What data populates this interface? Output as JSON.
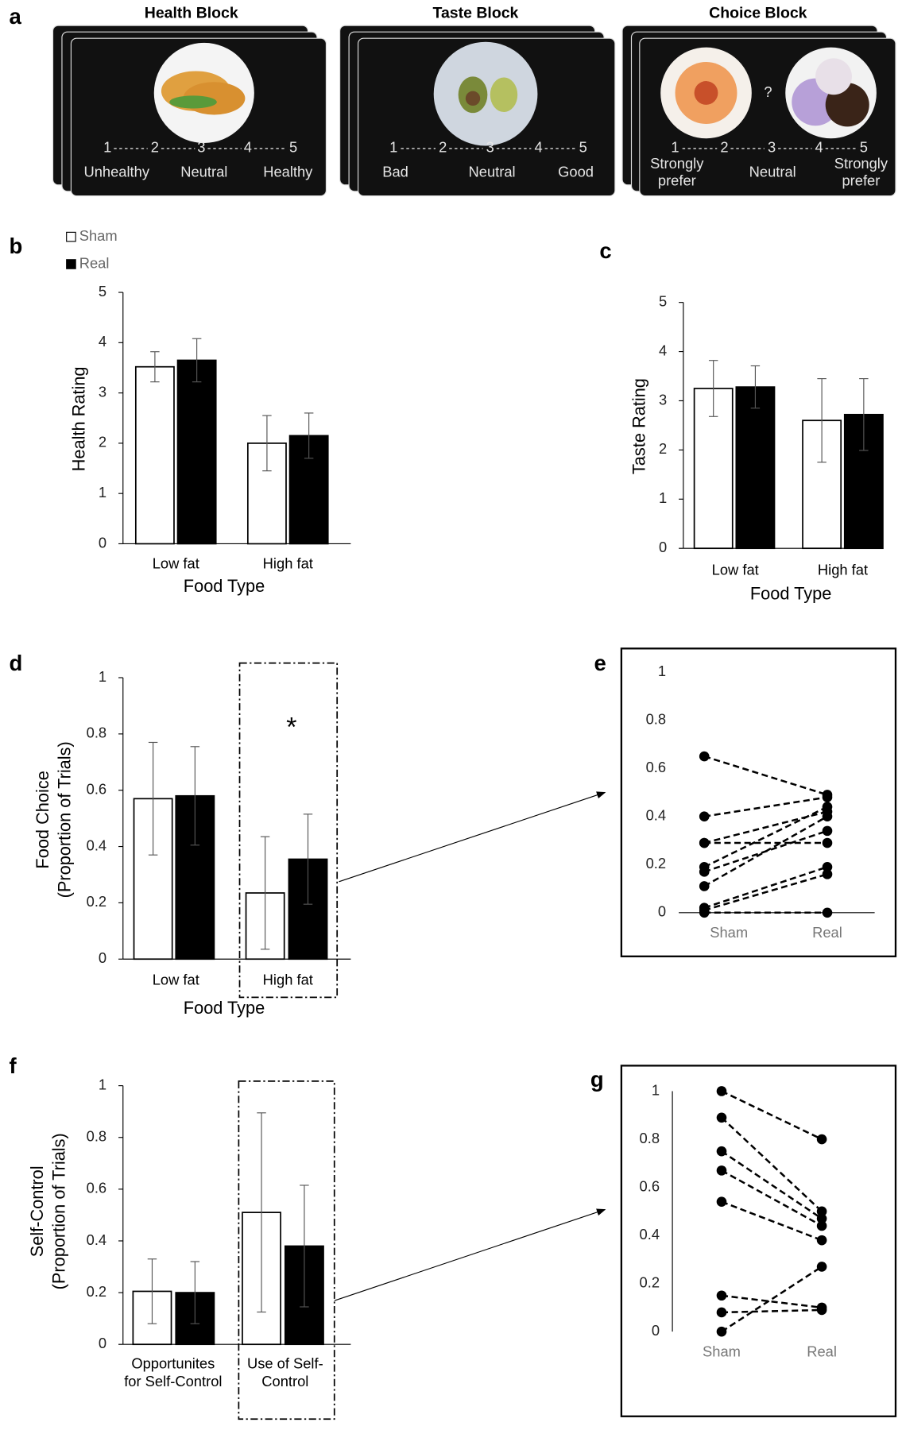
{
  "panel_a": {
    "panel": "a",
    "blocks": [
      {
        "title": "Health Block",
        "scale": [
          "1",
          "2",
          "3",
          "4",
          "5"
        ],
        "labels": [
          [
            "Unhealthy"
          ],
          [
            "Neutral"
          ],
          [
            "Healthy"
          ]
        ]
      },
      {
        "title": "Taste Block",
        "scale": [
          "1",
          "2",
          "3",
          "4",
          "5"
        ],
        "labels": [
          [
            "Bad"
          ],
          [
            "Neutral"
          ],
          [
            "Good"
          ]
        ]
      },
      {
        "title": "Choice Block",
        "question": "?",
        "scale": [
          "1",
          "2",
          "3",
          "4",
          "5"
        ],
        "labels": [
          [
            "Strongly",
            "prefer"
          ],
          [
            "Neutral"
          ],
          [
            "Strongly",
            "prefer"
          ]
        ]
      }
    ]
  },
  "chart_data": [
    {
      "type": "bar",
      "panel": "b",
      "ylabel": "Health Rating",
      "xlabel": "Food Type",
      "categories": [
        "Low fat",
        "High fat"
      ],
      "series": [
        {
          "name": "Sham",
          "color": "#ffffff",
          "values": [
            3.52,
            2.0
          ],
          "errors": [
            0.3,
            0.55
          ]
        },
        {
          "name": "Real",
          "color": "#000000",
          "values": [
            3.65,
            2.15
          ],
          "errors": [
            0.43,
            0.45
          ]
        }
      ],
      "legend": "top-left",
      "ylim": [
        0,
        5
      ],
      "yticks": [
        0,
        1,
        2,
        3,
        4,
        5
      ]
    },
    {
      "type": "bar",
      "panel": "c",
      "ylabel": "Taste Rating",
      "xlabel": "Food Type",
      "categories": [
        "Low fat",
        "High fat"
      ],
      "series": [
        {
          "color": "#ffffff",
          "values": [
            3.25,
            2.6
          ],
          "errors": [
            0.57,
            0.85
          ]
        },
        {
          "color": "#000000",
          "values": [
            3.28,
            2.72
          ],
          "errors": [
            0.43,
            0.73
          ]
        }
      ],
      "ylim": [
        0,
        5
      ],
      "yticks": [
        0,
        1,
        2,
        3,
        4,
        5
      ]
    },
    {
      "type": "bar",
      "panel": "d",
      "ylabel": [
        "Food Choice",
        "(Proportion of Trials)"
      ],
      "xlabel": "Food Type",
      "categories": [
        "Low fat",
        "High fat"
      ],
      "series": [
        {
          "color": "#ffffff",
          "values": [
            0.57,
            0.235
          ],
          "errors": [
            0.2,
            0.2
          ]
        },
        {
          "color": "#000000",
          "values": [
            0.58,
            0.355
          ],
          "errors": [
            0.175,
            0.16
          ]
        }
      ],
      "annotation": "*",
      "ylim": [
        0,
        1
      ],
      "yticks": [
        0,
        0.2,
        0.4,
        0.6,
        0.8,
        1
      ]
    },
    {
      "type": "line",
      "panel": "e",
      "categories": [
        "Sham",
        "Real"
      ],
      "series": [
        {
          "color": "#000000",
          "values": [
            0.65,
            0.49
          ]
        },
        {
          "color": "#000000",
          "values": [
            0.4,
            0.48
          ]
        },
        {
          "color": "#000000",
          "values": [
            0.29,
            0.42
          ]
        },
        {
          "color": "#000000",
          "values": [
            0.29,
            0.29
          ]
        },
        {
          "color": "#000000",
          "values": [
            0.19,
            0.44
          ]
        },
        {
          "color": "#000000",
          "values": [
            0.17,
            0.34
          ]
        },
        {
          "color": "#000000",
          "values": [
            0.11,
            0.4
          ]
        },
        {
          "color": "#000000",
          "values": [
            0.02,
            0.19
          ]
        },
        {
          "color": "#000000",
          "values": [
            0.01,
            0.16
          ]
        },
        {
          "color": "#000000",
          "values": [
            0,
            0
          ]
        }
      ],
      "ylim": [
        0,
        1
      ],
      "yticks": [
        0,
        0.2,
        0.4,
        0.6,
        0.8,
        1
      ]
    },
    {
      "type": "bar",
      "panel": "f",
      "ylabel": [
        "Self-Control",
        "(Proportion of Trials)"
      ],
      "categories": [
        [
          "Opportunites",
          "for Self-Control"
        ],
        [
          "Use of Self-",
          "Control"
        ]
      ],
      "series": [
        {
          "color": "#ffffff",
          "values": [
            0.205,
            0.51
          ],
          "errors": [
            0.125,
            0.385
          ]
        },
        {
          "color": "#000000",
          "values": [
            0.2,
            0.38
          ],
          "errors": [
            0.12,
            0.235
          ]
        }
      ],
      "ylim": [
        0,
        1
      ],
      "yticks": [
        0,
        0.2,
        0.4,
        0.6,
        0.8,
        1
      ]
    },
    {
      "type": "line",
      "panel": "g",
      "categories": [
        "Sham",
        "Real"
      ],
      "series": [
        {
          "color": "#000000",
          "values": [
            1,
            0.8
          ]
        },
        {
          "color": "#000000",
          "values": [
            0.89,
            0.5
          ]
        },
        {
          "color": "#000000",
          "values": [
            0.75,
            0.47
          ]
        },
        {
          "color": "#000000",
          "values": [
            0.67,
            0.44
          ]
        },
        {
          "color": "#000000",
          "values": [
            0.54,
            0.38
          ]
        },
        {
          "color": "#000000",
          "values": [
            0.15,
            0.1
          ]
        },
        {
          "color": "#000000",
          "values": [
            0.08,
            0.09
          ]
        },
        {
          "color": "#000000",
          "values": [
            0,
            0.27
          ]
        }
      ],
      "ylim": [
        0,
        1
      ],
      "yticks": [
        0,
        0.2,
        0.4,
        0.6,
        0.8,
        1
      ]
    }
  ]
}
